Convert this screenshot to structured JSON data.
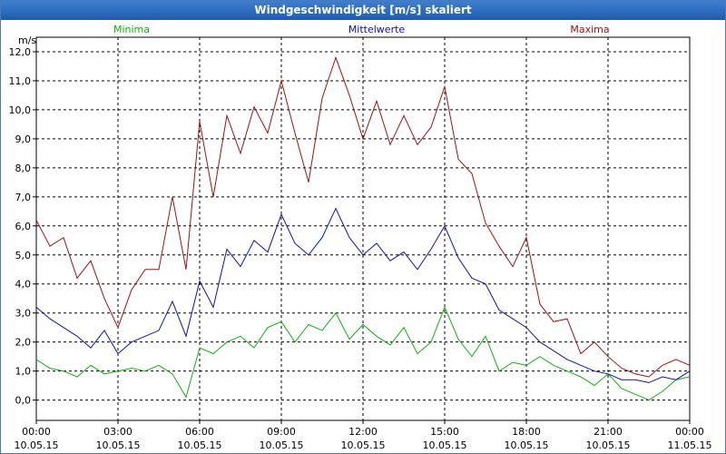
{
  "window": {
    "title": "Windgeschwindigkeit [m/s] skaliert"
  },
  "chart_data": {
    "type": "line",
    "title": "Windgeschwindigkeit [m/s] skaliert",
    "ylabel": "m/s",
    "xlabel": "",
    "ylim": [
      -0.7,
      12.5
    ],
    "xlim": [
      0,
      24
    ],
    "grid": true,
    "legend_placement": "top",
    "y_ticks": [
      "0,0",
      "1,0",
      "2,0",
      "3,0",
      "4,0",
      "5,0",
      "6,0",
      "7,0",
      "8,0",
      "9,0",
      "10,0",
      "11,0",
      "12,0"
    ],
    "y_tick_values": [
      0,
      1,
      2,
      3,
      4,
      5,
      6,
      7,
      8,
      9,
      10,
      11,
      12
    ],
    "x_tick_values": [
      0,
      3,
      6,
      9,
      12,
      15,
      18,
      21,
      24
    ],
    "x_ticks": [
      {
        "time": "00:00",
        "date": "10.05.15"
      },
      {
        "time": "03:00",
        "date": "10.05.15"
      },
      {
        "time": "06:00",
        "date": "10.05.15"
      },
      {
        "time": "09:00",
        "date": "10.05.15"
      },
      {
        "time": "12:00",
        "date": "10.05.15"
      },
      {
        "time": "15:00",
        "date": "10.05.15"
      },
      {
        "time": "18:00",
        "date": "10.05.15"
      },
      {
        "time": "21:00",
        "date": "10.05.15"
      },
      {
        "time": "00:00",
        "date": "11.05.15"
      }
    ],
    "series": [
      {
        "name": "Minima",
        "color": "#10b010",
        "x": [
          0,
          0.5,
          1,
          1.5,
          2,
          2.5,
          3,
          3.5,
          4,
          4.5,
          5,
          5.5,
          6,
          6.5,
          7,
          7.5,
          8,
          8.5,
          9,
          9.5,
          10,
          10.5,
          11,
          11.5,
          12,
          12.5,
          13,
          13.5,
          14,
          14.5,
          15,
          15.5,
          16,
          16.5,
          17,
          17.5,
          18,
          18.5,
          19,
          19.5,
          20,
          20.5,
          21,
          21.5,
          22,
          22.5,
          23,
          23.5,
          24
        ],
        "values": [
          1.4,
          1.1,
          1.0,
          0.8,
          1.2,
          0.9,
          1.0,
          1.1,
          1.0,
          1.2,
          0.9,
          0.1,
          1.8,
          1.6,
          2.0,
          2.2,
          1.8,
          2.5,
          2.7,
          2.0,
          2.6,
          2.4,
          3.0,
          2.1,
          2.6,
          2.2,
          1.9,
          2.5,
          1.6,
          2.0,
          3.2,
          2.1,
          1.5,
          2.2,
          1.0,
          1.3,
          1.2,
          1.5,
          1.2,
          1.0,
          0.8,
          0.5,
          0.9,
          0.4,
          0.2,
          0.0,
          0.3,
          0.7,
          0.8
        ]
      },
      {
        "name": "Mittelwerte",
        "color": "#1010b0",
        "x": [
          0,
          0.5,
          1,
          1.5,
          2,
          2.5,
          3,
          3.5,
          4,
          4.5,
          5,
          5.5,
          6,
          6.5,
          7,
          7.5,
          8,
          8.5,
          9,
          9.5,
          10,
          10.5,
          11,
          11.5,
          12,
          12.5,
          13,
          13.5,
          14,
          14.5,
          15,
          15.5,
          16,
          16.5,
          17,
          17.5,
          18,
          18.5,
          19,
          19.5,
          20,
          20.5,
          21,
          21.5,
          22,
          22.5,
          23,
          23.5,
          24
        ],
        "values": [
          3.2,
          2.8,
          2.5,
          2.2,
          1.8,
          2.4,
          1.6,
          2.0,
          2.2,
          2.4,
          3.4,
          2.2,
          4.1,
          3.2,
          5.2,
          4.6,
          5.5,
          5.1,
          6.4,
          5.4,
          5.0,
          5.6,
          6.6,
          5.6,
          5.0,
          5.4,
          4.8,
          5.1,
          4.5,
          5.2,
          6.0,
          4.9,
          4.2,
          4.0,
          3.1,
          2.8,
          2.5,
          2.0,
          1.7,
          1.4,
          1.2,
          1.0,
          0.9,
          0.7,
          0.7,
          0.6,
          0.8,
          0.7,
          1.0
        ]
      },
      {
        "name": "Maxima",
        "color": "#a01010",
        "x": [
          0,
          0.5,
          1,
          1.5,
          2,
          2.5,
          3,
          3.5,
          4,
          4.5,
          5,
          5.5,
          6,
          6.5,
          7,
          7.5,
          8,
          8.5,
          9,
          9.5,
          10,
          10.5,
          11,
          11.5,
          12,
          12.5,
          13,
          13.5,
          14,
          14.5,
          15,
          15.5,
          16,
          16.5,
          17,
          17.5,
          18,
          18.5,
          19,
          19.5,
          20,
          20.5,
          21,
          21.5,
          22,
          22.5,
          23,
          23.5,
          24
        ],
        "values": [
          6.2,
          5.3,
          5.6,
          4.2,
          4.8,
          3.5,
          2.5,
          3.8,
          4.5,
          4.5,
          7.0,
          4.5,
          9.6,
          7.0,
          9.8,
          8.5,
          10.1,
          9.2,
          11.0,
          9.2,
          7.5,
          10.4,
          11.8,
          10.5,
          9.0,
          10.3,
          8.8,
          9.8,
          8.8,
          9.4,
          10.8,
          8.3,
          7.8,
          6.1,
          5.3,
          4.6,
          5.6,
          3.3,
          2.7,
          2.8,
          1.6,
          2.0,
          1.5,
          1.1,
          0.9,
          0.8,
          1.2,
          1.4,
          1.2
        ]
      }
    ]
  }
}
